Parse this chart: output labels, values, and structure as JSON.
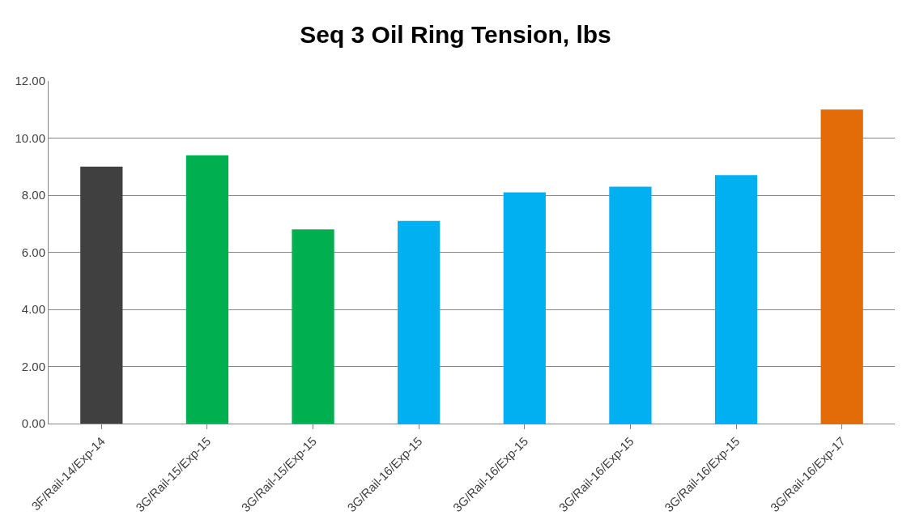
{
  "chart_data": {
    "type": "bar",
    "title": "Seq 3 Oil Ring Tension, lbs",
    "categories": [
      "3F/Rail-14/Exp-14",
      "3G/Rail-15/Exp-15",
      "3G/Rail-15/Exp-15",
      "3G/Rail-16/Exp-15",
      "3G/Rail-16/Exp-15",
      "3G/Rail-16/Exp-15",
      "3G/Rail-16/Exp-15",
      "3G/Rail-16/Exp-17"
    ],
    "values": [
      9.0,
      9.4,
      6.8,
      7.1,
      8.1,
      8.3,
      8.7,
      11.0
    ],
    "colors": [
      "#404040",
      "#00b050",
      "#00b050",
      "#00b0f0",
      "#00b0f0",
      "#00b0f0",
      "#00b0f0",
      "#e36c09"
    ],
    "ylim": [
      0,
      12
    ],
    "yticks": [
      {
        "value": 0,
        "label": "0.00"
      },
      {
        "value": 2,
        "label": "2.00"
      },
      {
        "value": 4,
        "label": "4.00"
      },
      {
        "value": 6,
        "label": "6.00"
      },
      {
        "value": 8,
        "label": "8.00"
      },
      {
        "value": 10,
        "label": "10.00"
      },
      {
        "value": 12,
        "label": "12.00"
      }
    ],
    "grid": "y",
    "legend": false
  }
}
